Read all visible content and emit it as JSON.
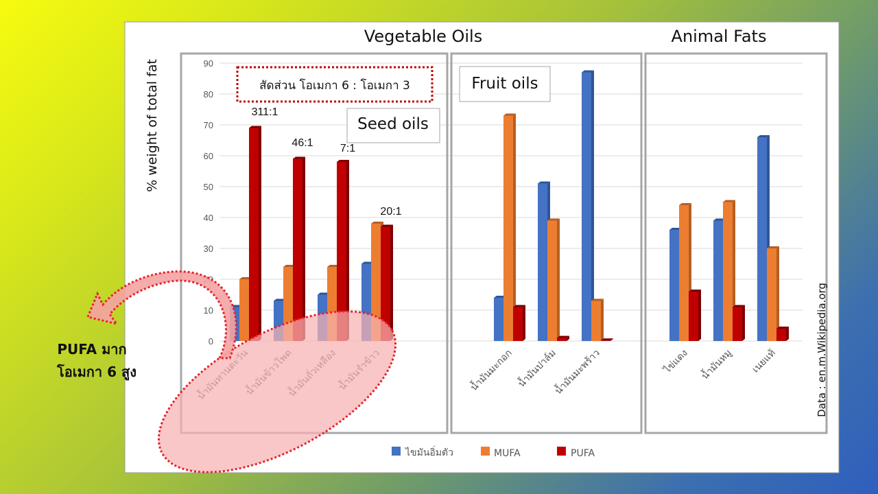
{
  "headings": {
    "vegetable": "Vegetable Oils",
    "animal": "Animal Fats",
    "ylabel": "% weight of total fat",
    "source": "Data : en.m.Wikipedia.org",
    "seed_box": "Seed oils",
    "fruit_box": "Fruit oils",
    "ratio_box": "สัดส่วน โอเมกา 6 : โอเมกา 3"
  },
  "callout": {
    "line1": "PUFA มาก",
    "line2": "โอเมกา 6 สูง"
  },
  "colors": {
    "saturated": "#4472c4",
    "mufa": "#ed7d31",
    "pufa": "#c00000",
    "dotted": "#e8232a",
    "ellipse_fill": "#f7b2b2"
  },
  "chart_data": {
    "type": "bar",
    "ylim": [
      0,
      90
    ],
    "yticks": [
      0,
      10,
      20,
      30,
      40,
      50,
      60,
      70,
      80,
      90
    ],
    "ylabel": "% weight of total fat",
    "grid": true,
    "legend_placement": "bottom",
    "categories": [
      "น้ำมันทานตะวัน",
      "น้ำมันข้าวโพด",
      "น้ำมันถั่วเหลือง",
      "น้ำมันรำข้าว",
      "น้ำมันมะกอก",
      "น้ำมันปาล์ม",
      "น้ำมันมะพร้าว",
      "ไข่แดง",
      "น้ำมันหมู",
      "เนยแท้"
    ],
    "groups": [
      {
        "name": "Vegetable Oils",
        "subgroup": "Seed oils",
        "categories": [
          "น้ำมันทานตะวัน",
          "น้ำมันข้าวโพด",
          "น้ำมันถั่วเหลือง",
          "น้ำมันรำข้าว"
        ]
      },
      {
        "name": "Vegetable Oils",
        "subgroup": "Fruit oils",
        "categories": [
          "น้ำมันมะกอก",
          "น้ำมันปาล์ม",
          "น้ำมันมะพร้าว"
        ]
      },
      {
        "name": "Animal Fats",
        "categories": [
          "ไข่แดง",
          "น้ำมันหมู",
          "เนยแท้"
        ]
      }
    ],
    "series": [
      {
        "name": "ไขมันอิ่มตัว",
        "color": "#4472c4",
        "values": [
          11,
          13,
          15,
          25,
          14,
          51,
          87,
          36,
          39,
          66
        ]
      },
      {
        "name": "MUFA",
        "color": "#ed7d31",
        "values": [
          20,
          24,
          24,
          38,
          73,
          39,
          13,
          44,
          45,
          30
        ]
      },
      {
        "name": "PUFA",
        "color": "#c00000",
        "values": [
          69,
          59,
          58,
          37,
          11,
          1,
          0,
          16,
          11,
          4
        ]
      }
    ],
    "ratio_labels": [
      "311:1",
      "46:1",
      "7:1",
      "20:1"
    ]
  }
}
